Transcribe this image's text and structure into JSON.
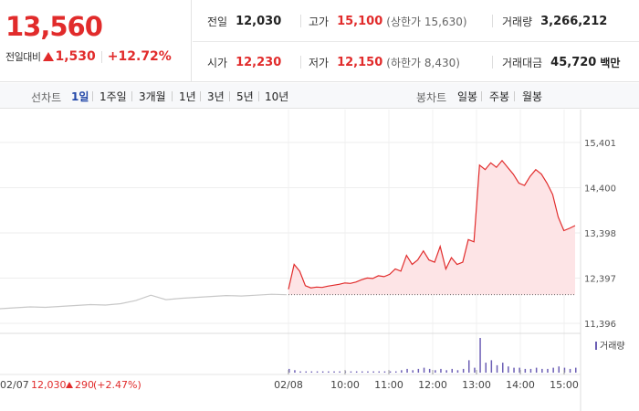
{
  "quote": {
    "price": "13,560",
    "change_label": "전일대비",
    "change_value": "1,530",
    "change_pct": "+12.72%",
    "prev_close_label": "전일",
    "prev_close": "12,030",
    "high_label": "고가",
    "high": "15,100",
    "upper_limit": "(상한가 15,630)",
    "volume_label": "거래량",
    "volume": "3,266,212",
    "open_label": "시가",
    "open": "12,230",
    "low_label": "저가",
    "low": "12,150",
    "lower_limit": "(하한가 8,430)",
    "amount_label": "거래대금",
    "amount": "45,720",
    "amount_unit": "백만",
    "colors": {
      "up": "#e12b2b",
      "down": "#2a5bd7"
    }
  },
  "tabs": {
    "line_label": "선차트",
    "line_items": [
      "1일",
      "1주일",
      "3개월",
      "1년",
      "3년",
      "5년",
      "10년"
    ],
    "line_active": 0,
    "candle_label": "봉차트",
    "candle_items": [
      "일봉",
      "주봉",
      "월봉"
    ]
  },
  "chart_data": {
    "type": "line",
    "y_ticks": [
      "15,401",
      "14,400",
      "13,398",
      "12,397",
      "11,396"
    ],
    "y_range": [
      11396,
      15401
    ],
    "x_ticks": [
      "02/08",
      "10:00",
      "11:00",
      "12:00",
      "13:00",
      "14:00",
      "15:00"
    ],
    "prev_day_label": "02/07",
    "prev_day_close": "12,030",
    "prev_day_change": "290",
    "prev_day_change_pct": "(+2.47%)",
    "volume_legend": "거래량",
    "reference_line": 12030,
    "prev_day_series": [
      11720,
      11740,
      11760,
      11750,
      11770,
      11790,
      11810,
      11800,
      11830,
      11900,
      12020,
      11920,
      11950,
      11970,
      11990,
      12010,
      12000,
      12020,
      12040,
      12030
    ],
    "today_series": [
      12150,
      12700,
      12550,
      12230,
      12180,
      12200,
      12190,
      12220,
      12240,
      12260,
      12290,
      12280,
      12310,
      12360,
      12400,
      12390,
      12450,
      12430,
      12480,
      12600,
      12550,
      12900,
      12700,
      12800,
      13000,
      12800,
      12750,
      13100,
      12600,
      12850,
      12700,
      12750,
      13250,
      13200,
      14900,
      14800,
      14950,
      14850,
      15000,
      14850,
      14700,
      14500,
      14450,
      14650,
      14800,
      14700,
      14500,
      14250,
      13750,
      13450,
      13500,
      13560
    ],
    "today_volume": [
      3,
      2,
      1,
      1,
      1,
      1,
      1,
      1,
      1,
      1,
      1,
      1,
      1,
      1,
      1,
      1,
      1,
      1,
      1,
      1,
      2,
      3,
      2,
      3,
      4,
      3,
      2,
      3,
      2,
      3,
      2,
      3,
      10,
      4,
      28,
      8,
      10,
      6,
      8,
      5,
      4,
      4,
      3,
      3,
      4,
      3,
      3,
      4,
      5,
      4,
      3,
      4
    ],
    "grid": true
  }
}
